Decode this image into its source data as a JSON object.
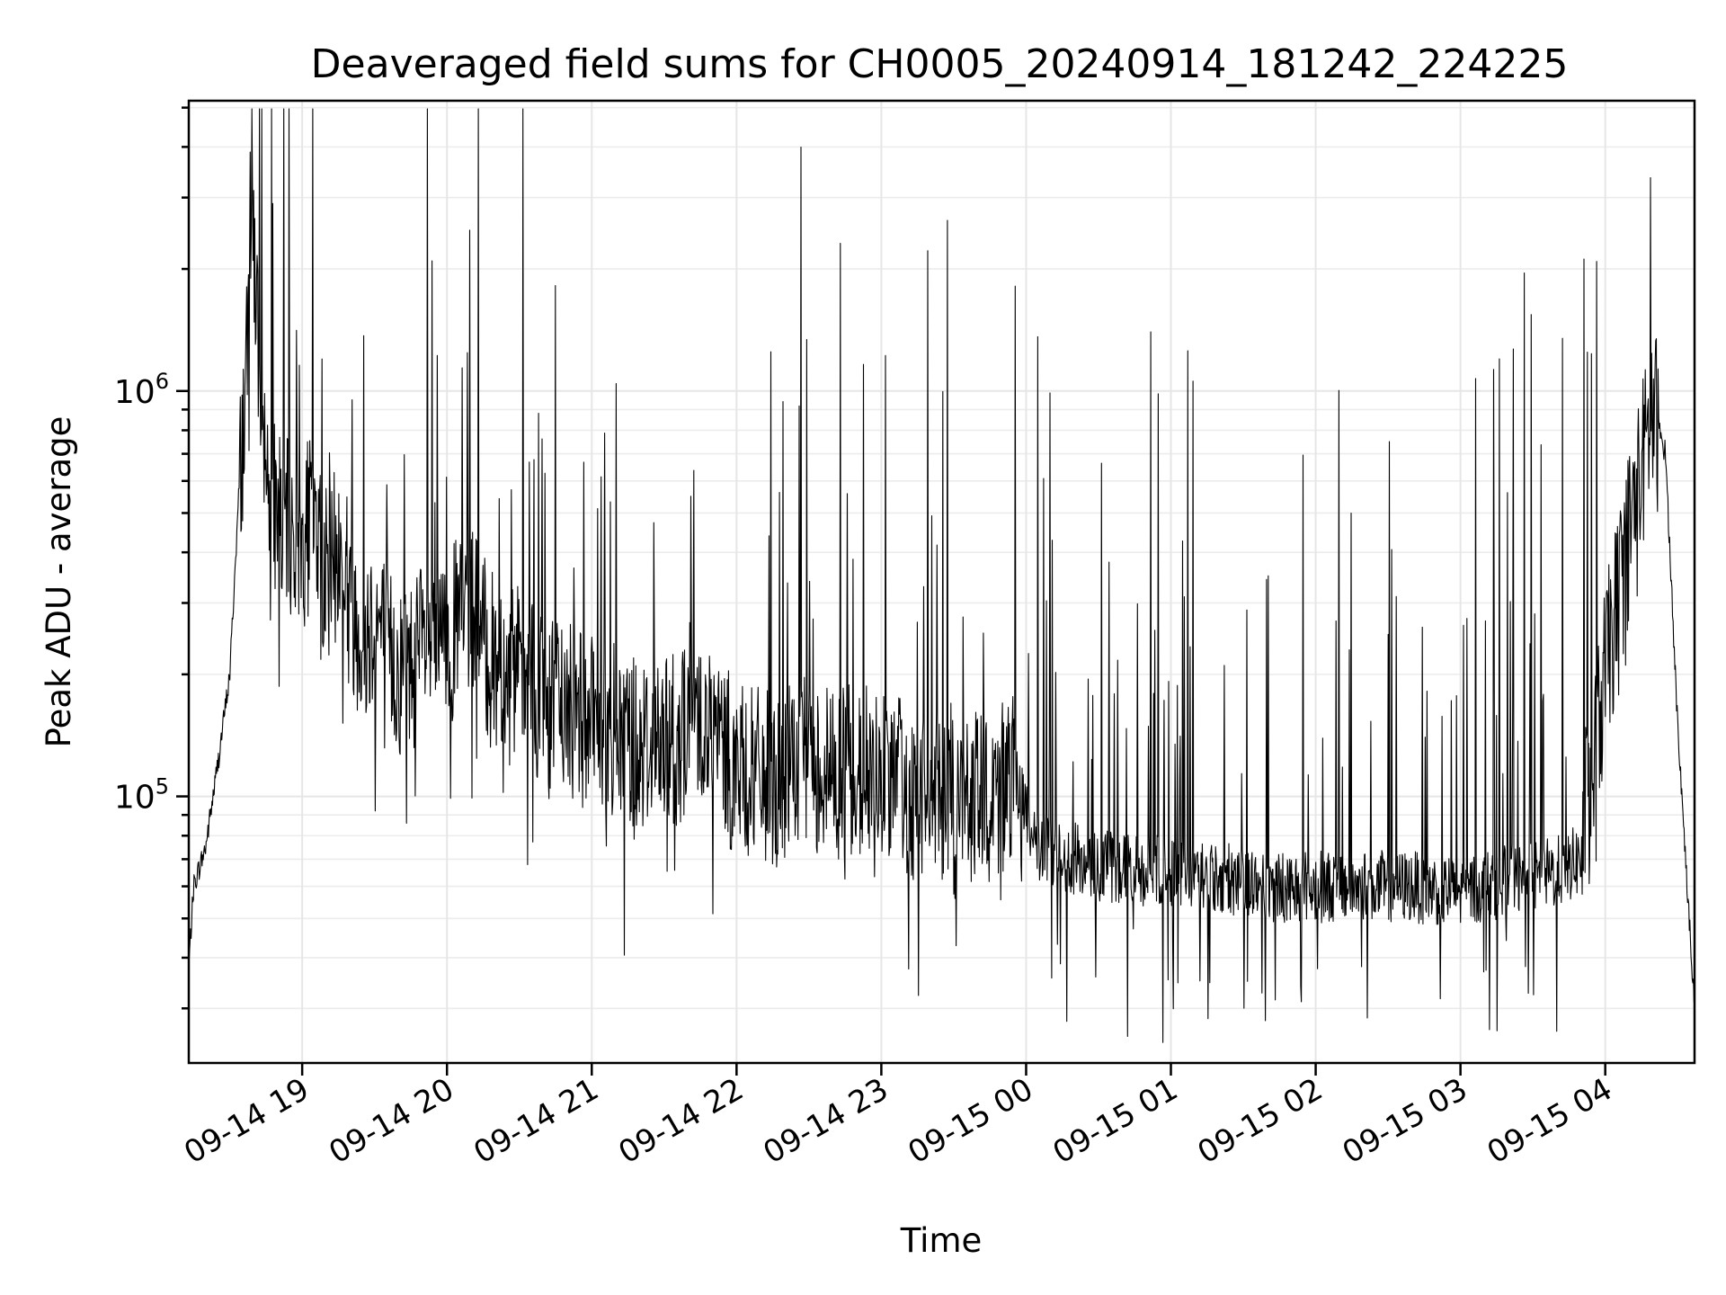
{
  "chart_data": {
    "type": "line",
    "title": "Deaveraged field sums for CH0005_20240914_181242_224225",
    "xlabel": "Time",
    "ylabel": "Peak ADU - average",
    "yscale": "log",
    "grid": "on (major and minor)",
    "line_color": "#000000",
    "xlim": [
      "2024-09-14 18:13",
      "2024-09-15 04:37"
    ],
    "ylim": [
      22000,
      5200000
    ],
    "x_ticks": [
      {
        "value": "2024-09-14 19:00",
        "label": "09-14 19"
      },
      {
        "value": "2024-09-14 20:00",
        "label": "09-14 20"
      },
      {
        "value": "2024-09-14 21:00",
        "label": "09-14 21"
      },
      {
        "value": "2024-09-14 22:00",
        "label": "09-14 22"
      },
      {
        "value": "2024-09-14 23:00",
        "label": "09-14 23"
      },
      {
        "value": "2024-09-15 00:00",
        "label": "09-15 00"
      },
      {
        "value": "2024-09-15 01:00",
        "label": "09-15 01"
      },
      {
        "value": "2024-09-15 02:00",
        "label": "09-15 02"
      },
      {
        "value": "2024-09-15 03:00",
        "label": "09-15 03"
      },
      {
        "value": "2024-09-15 04:00",
        "label": "09-15 04"
      }
    ],
    "y_ticks": [
      {
        "value": 100000,
        "base": "10",
        "exp": "5"
      },
      {
        "value": 1000000,
        "base": "10",
        "exp": "6"
      }
    ],
    "series": [
      {
        "x": [
          "2024-09-14 18:13",
          "2024-09-14 18:15",
          "2024-09-14 18:20",
          "2024-09-14 18:25",
          "2024-09-14 18:30",
          "2024-09-14 18:34",
          "2024-09-14 18:37",
          "2024-09-14 18:39",
          "2024-09-14 18:41",
          "2024-09-14 18:43",
          "2024-09-14 18:46",
          "2024-09-14 18:50",
          "2024-09-14 18:55",
          "2024-09-14 19:00",
          "2024-09-14 19:05",
          "2024-09-14 19:10",
          "2024-09-14 19:15",
          "2024-09-14 19:20",
          "2024-09-14 19:25",
          "2024-09-14 19:30",
          "2024-09-14 19:40",
          "2024-09-14 19:50",
          "2024-09-14 20:00",
          "2024-09-14 20:10",
          "2024-09-14 20:17",
          "2024-09-14 20:25",
          "2024-09-14 20:35",
          "2024-09-14 20:45",
          "2024-09-14 21:00",
          "2024-09-14 21:15",
          "2024-09-14 21:30",
          "2024-09-14 21:45",
          "2024-09-14 22:00",
          "2024-09-14 22:15",
          "2024-09-14 22:30",
          "2024-09-14 22:45",
          "2024-09-14 23:00",
          "2024-09-14 23:15",
          "2024-09-14 23:30",
          "2024-09-14 23:45",
          "2024-09-14 23:55",
          "2024-09-15 00:05",
          "2024-09-15 00:20",
          "2024-09-15 00:40",
          "2024-09-15 01:00",
          "2024-09-15 01:20",
          "2024-09-15 01:40",
          "2024-09-15 02:00",
          "2024-09-15 02:20",
          "2024-09-15 02:40",
          "2024-09-15 03:00",
          "2024-09-15 03:20",
          "2024-09-15 03:40",
          "2024-09-15 03:50",
          "2024-09-15 04:00",
          "2024-09-15 04:10",
          "2024-09-15 04:20",
          "2024-09-15 04:25",
          "2024-09-15 04:30",
          "2024-09-15 04:37"
        ],
        "y": [
          38000,
          60000,
          75000,
          120000,
          200000,
          600000,
          1100000,
          3200000,
          1700000,
          800000,
          600000,
          500000,
          450000,
          420000,
          500000,
          350000,
          400000,
          300000,
          250000,
          280000,
          200000,
          230000,
          240000,
          300000,
          220000,
          200000,
          180000,
          170000,
          150000,
          140000,
          130000,
          160000,
          115000,
          110000,
          120000,
          115000,
          115000,
          100000,
          95000,
          100000,
          110000,
          75000,
          70000,
          66000,
          65000,
          63000,
          60000,
          60000,
          60000,
          60000,
          58000,
          62000,
          65000,
          70000,
          200000,
          450000,
          900000,
          700000,
          150000,
          30000
        ]
      }
    ]
  }
}
